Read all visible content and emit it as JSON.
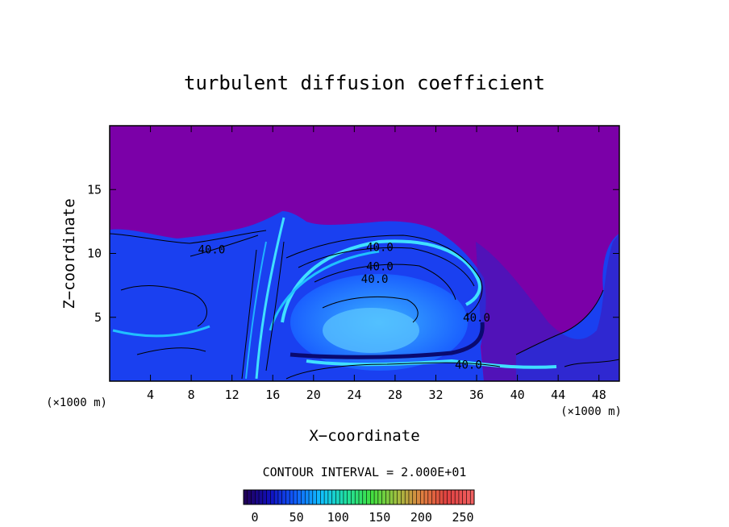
{
  "chart_data": {
    "type": "heatmap",
    "title": "turbulent diffusion coefficient",
    "xlabel": "X−coordinate",
    "ylabel": "Z−coordinate",
    "x_unit_left": "(×1000 m)",
    "x_unit_right": "(×1000 m)",
    "xlim": [
      0,
      50
    ],
    "ylim": [
      0,
      20
    ],
    "x_ticks": [
      4,
      8,
      12,
      16,
      20,
      24,
      28,
      32,
      36,
      40,
      44,
      48
    ],
    "y_ticks": [
      5,
      10,
      15
    ],
    "contour_interval_text": "CONTOUR INTERVAL = 2.000E+01",
    "contour_labels": [
      {
        "text": "40.0",
        "x": 10,
        "z": 10.3
      },
      {
        "text": "40.0",
        "x": 26.5,
        "z": 10.5
      },
      {
        "text": "40.0",
        "x": 26.5,
        "z": 9.0
      },
      {
        "text": "40.0",
        "x": 26.0,
        "z": 8.0
      },
      {
        "text": "40.0",
        "x": 36.0,
        "z": 5.0
      },
      {
        "text": "40.0",
        "x": 35.2,
        "z": 1.3
      }
    ],
    "colorbar": {
      "min": 0,
      "max": 250,
      "ticks": [
        0,
        50,
        100,
        150,
        200,
        250
      ],
      "colors": [
        "#20005a",
        "#1010c0",
        "#1060ff",
        "#10c0ff",
        "#20e0a0",
        "#40e040",
        "#a0c040",
        "#e08040",
        "#e04040",
        "#f06060"
      ]
    },
    "background_color": "#7b00a8",
    "grid": false
  }
}
